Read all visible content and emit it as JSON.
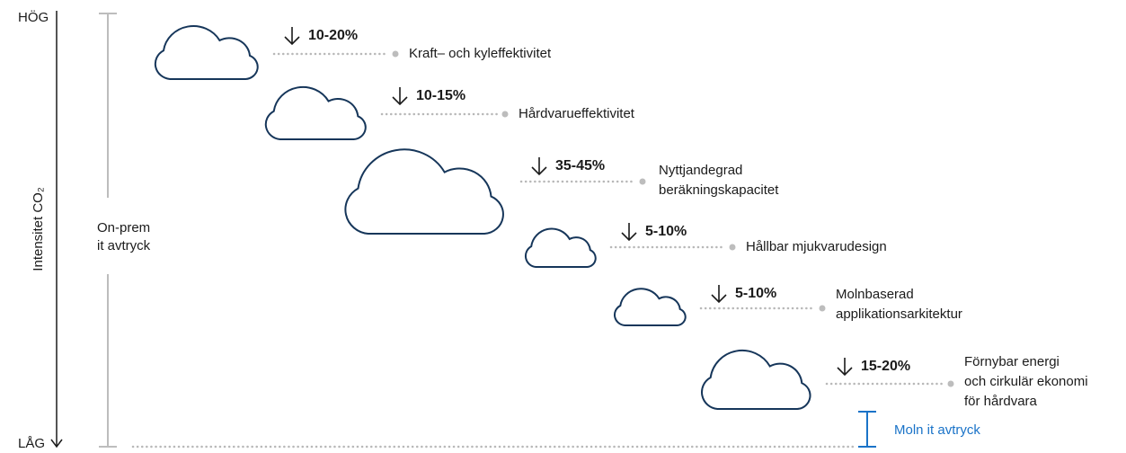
{
  "axis": {
    "high": "HÖG",
    "low": "LÅG",
    "label": "Intensitet CO₂"
  },
  "on_prem": [
    "On-prem",
    "it avtryck"
  ],
  "steps": [
    {
      "reduction": "10-20%",
      "label": [
        "Kraft– och kyleffektivitet"
      ]
    },
    {
      "reduction": "10-15%",
      "label": [
        "Hårdvarueffektivitet"
      ]
    },
    {
      "reduction": "35-45%",
      "label": [
        "Nyttjandegrad",
        "beräkningskapacitet"
      ]
    },
    {
      "reduction": "5-10%",
      "label": [
        "Hållbar mjukvarudesign"
      ]
    },
    {
      "reduction": "5-10%",
      "label": [
        "Molnbaserad",
        "applikationsarkitektur"
      ]
    },
    {
      "reduction": "15-20%",
      "label": [
        "Förnybar energi",
        "och cirkulär ekonomi",
        "för hårdvara"
      ]
    }
  ],
  "cloud": "Moln it avtryck"
}
